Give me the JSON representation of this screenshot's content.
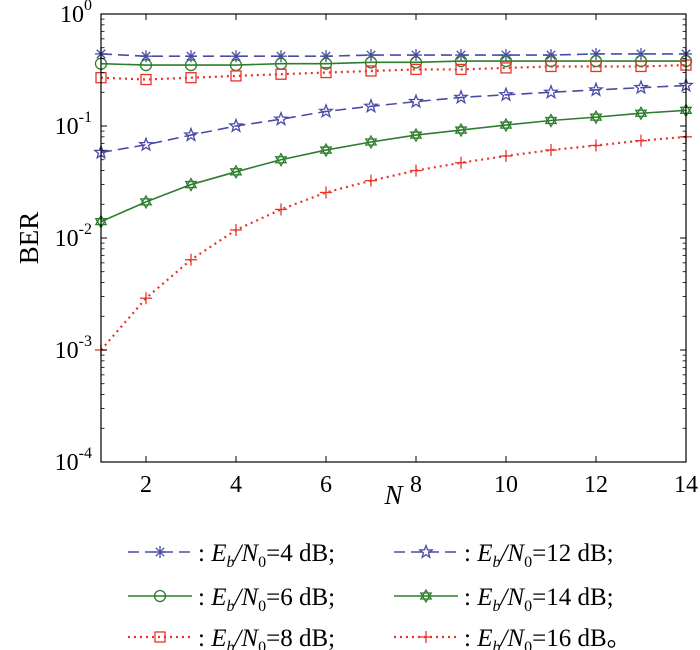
{
  "chart_data": {
    "type": "line",
    "title": "",
    "xlabel": "N",
    "ylabel": "BER",
    "xlim": [
      1,
      14
    ],
    "ylim": [
      0.0001,
      1
    ],
    "yscale": "log",
    "grid": false,
    "legend_position": "bottom",
    "x_ticks": [
      2,
      4,
      6,
      8,
      10,
      12,
      14
    ],
    "y_ticks": [
      {
        "value": 1,
        "base": "10",
        "exp": "0"
      },
      {
        "value": 0.1,
        "base": "10",
        "exp": "-1"
      },
      {
        "value": 0.01,
        "base": "10",
        "exp": "-2"
      },
      {
        "value": 0.001,
        "base": "10",
        "exp": "-3"
      },
      {
        "value": 0.0001,
        "base": "10",
        "exp": "-4"
      }
    ],
    "x": [
      1,
      2,
      3,
      4,
      5,
      6,
      7,
      8,
      9,
      10,
      11,
      12,
      13,
      14
    ],
    "series": [
      {
        "name": ": Eb/N0=4 dB;",
        "label": {
          "prefix": ": ",
          "sym": "E",
          "sub1": "b",
          "sep": "/N",
          "sub2": "0",
          "suffix": "=4 dB;"
        },
        "color": "#4a4aa8",
        "dash": "dash",
        "marker": "asterisk",
        "values": [
          0.44,
          0.42,
          0.42,
          0.42,
          0.42,
          0.42,
          0.43,
          0.43,
          0.43,
          0.43,
          0.43,
          0.44,
          0.44,
          0.44
        ]
      },
      {
        "name": ": Eb/N0=6 dB;",
        "label": {
          "prefix": ": ",
          "sym": "E",
          "sub1": "b",
          "sep": "/N",
          "sub2": "0",
          "suffix": "=6 dB;"
        },
        "color": "#2e7d2e",
        "dash": "solid",
        "marker": "circle",
        "values": [
          0.36,
          0.35,
          0.35,
          0.35,
          0.36,
          0.36,
          0.37,
          0.37,
          0.38,
          0.38,
          0.38,
          0.38,
          0.38,
          0.38
        ]
      },
      {
        "name": ": Eb/N0=8 dB;",
        "label": {
          "prefix": ": ",
          "sym": "E",
          "sub1": "b",
          "sep": "/N",
          "sub2": "0",
          "suffix": "=8 dB;"
        },
        "color": "#e8322a",
        "dash": "dot",
        "marker": "square",
        "values": [
          0.27,
          0.26,
          0.27,
          0.28,
          0.29,
          0.3,
          0.31,
          0.32,
          0.32,
          0.33,
          0.34,
          0.34,
          0.34,
          0.35
        ]
      },
      {
        "name": ": Eb/N0=12 dB;",
        "label": {
          "prefix": ": ",
          "sym": "E",
          "sub1": "b",
          "sep": "/N",
          "sub2": "0",
          "suffix": "=12 dB;"
        },
        "color": "#4a4aa8",
        "dash": "dash",
        "marker": "star",
        "values": [
          0.058,
          0.068,
          0.083,
          0.1,
          0.115,
          0.135,
          0.15,
          0.165,
          0.18,
          0.19,
          0.2,
          0.21,
          0.22,
          0.23
        ]
      },
      {
        "name": ": Eb/N0=14 dB;",
        "label": {
          "prefix": ": ",
          "sym": "E",
          "sub1": "b",
          "sep": "/N",
          "sub2": "0",
          "suffix": "=14 dB;"
        },
        "color": "#2e7d2e",
        "dash": "solid",
        "marker": "hexagram",
        "values": [
          0.014,
          0.021,
          0.03,
          0.039,
          0.05,
          0.061,
          0.072,
          0.083,
          0.092,
          0.102,
          0.112,
          0.12,
          0.13,
          0.138
        ]
      },
      {
        "name": ": Eb/N0=16 dB。",
        "label": {
          "prefix": ": ",
          "sym": "E",
          "sub1": "b",
          "sep": "/N",
          "sub2": "0",
          "suffix": "=16 dB。"
        },
        "color": "#e8322a",
        "dash": "dot",
        "marker": "plus",
        "values": [
          0.001,
          0.0029,
          0.0064,
          0.0118,
          0.018,
          0.0255,
          0.0325,
          0.04,
          0.047,
          0.054,
          0.061,
          0.067,
          0.074,
          0.08
        ]
      }
    ],
    "legend_order": [
      0,
      3,
      1,
      4,
      2,
      5
    ]
  }
}
